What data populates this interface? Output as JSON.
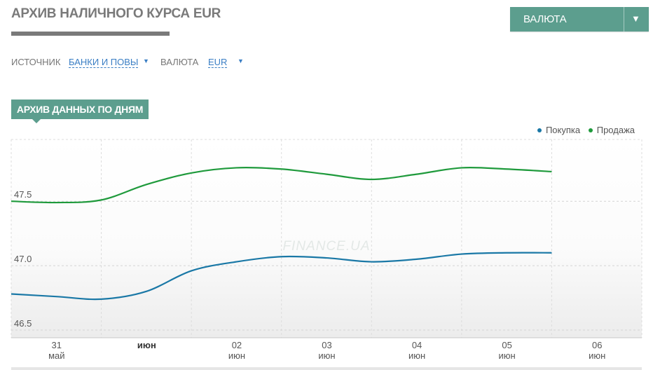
{
  "header": {
    "title": "АРХИВ НАЛИЧНОГО КУРСА EUR",
    "currency_button": "ВАЛЮТА"
  },
  "filters": {
    "source_label": "ИСТОЧНИК",
    "source_value": "БАНКИ И ПОВЫ",
    "currency_label": "ВАЛЮТА",
    "currency_value": "EUR"
  },
  "section": {
    "tab_label": "АРХИВ ДАННЫХ ПО ДНЯМ"
  },
  "watermark": "FINANCE.UA",
  "colors": {
    "accent": "#5c9e8e",
    "buy": "#1a78a6",
    "sell": "#1f9a3c",
    "link": "#3a7ec4"
  },
  "chart_data": {
    "type": "line",
    "x": [
      "31 май",
      "июн",
      "02 июн",
      "03 июн",
      "04 июн",
      "05 июн",
      "06 июн"
    ],
    "x_ticks": [
      {
        "top": "31",
        "bottom": "май",
        "bold": false
      },
      {
        "top": "июн",
        "bottom": "",
        "bold": true
      },
      {
        "top": "02",
        "bottom": "июн",
        "bold": false
      },
      {
        "top": "03",
        "bottom": "июн",
        "bold": false
      },
      {
        "top": "04",
        "bottom": "июн",
        "bold": false
      },
      {
        "top": "05",
        "bottom": "июн",
        "bold": false
      },
      {
        "top": "06",
        "bottom": "июн",
        "bold": false
      }
    ],
    "xlim": [
      30.0,
      37.0
    ],
    "ylim": [
      46.44,
      47.98
    ],
    "y_ticks": [
      46.5,
      47.0,
      47.5
    ],
    "y_tick_labels": [
      "46.5",
      "47.0",
      "47.5"
    ],
    "grid": true,
    "legend_position": "top-right",
    "series": [
      {
        "name": "Покупка",
        "color": "#1a78a6",
        "points": [
          [
            30.0,
            46.78
          ],
          [
            30.5,
            46.76
          ],
          [
            31.0,
            46.74
          ],
          [
            31.5,
            46.8
          ],
          [
            32.0,
            46.96
          ],
          [
            32.5,
            47.03
          ],
          [
            33.0,
            47.07
          ],
          [
            33.5,
            47.06
          ],
          [
            34.0,
            47.03
          ],
          [
            34.5,
            47.05
          ],
          [
            35.0,
            47.09
          ],
          [
            35.5,
            47.1
          ],
          [
            36.0,
            47.1
          ]
        ]
      },
      {
        "name": "Продажа",
        "color": "#1f9a3c",
        "points": [
          [
            30.0,
            47.5
          ],
          [
            30.5,
            47.49
          ],
          [
            31.0,
            47.51
          ],
          [
            31.5,
            47.63
          ],
          [
            32.0,
            47.72
          ],
          [
            32.5,
            47.76
          ],
          [
            33.0,
            47.75
          ],
          [
            33.5,
            47.71
          ],
          [
            34.0,
            47.67
          ],
          [
            34.5,
            47.71
          ],
          [
            35.0,
            47.76
          ],
          [
            35.5,
            47.75
          ],
          [
            36.0,
            47.73
          ]
        ]
      }
    ]
  }
}
